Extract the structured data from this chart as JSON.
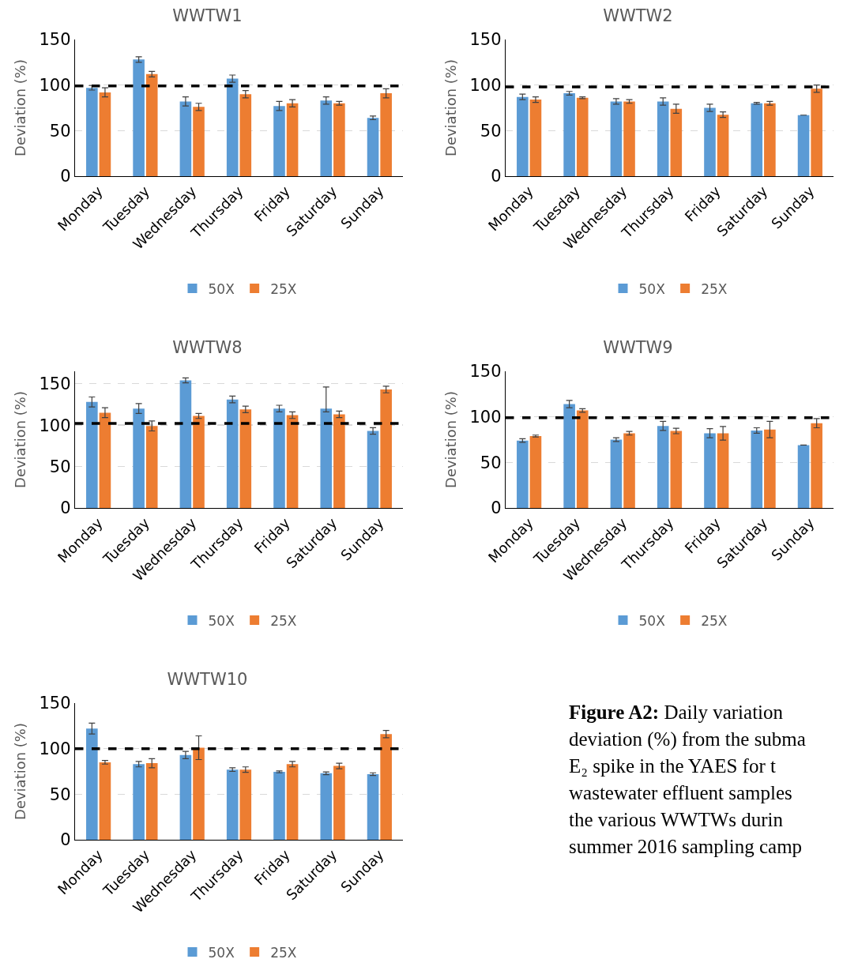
{
  "chart_data": [
    {
      "type": "bar",
      "title": "WWTW1",
      "ylabel": "Deviation (%)",
      "categories": [
        "Monday",
        "Tuesday",
        "Wednesday",
        "Thursday",
        "Friday",
        "Saturday",
        "Sunday"
      ],
      "ylim": [
        0,
        150
      ],
      "yticks": [
        0,
        50,
        100,
        150
      ],
      "grid": "y",
      "legend": "bottom",
      "ref_lines": [
        {
          "axis": "y",
          "value": 99,
          "color": "#000000",
          "line_style": "dashed"
        }
      ],
      "series": [
        {
          "name": "50X",
          "color": "#5b9bd5",
          "values": [
            97,
            128,
            82,
            107,
            77,
            83,
            64
          ],
          "errors": [
            2.5,
            3,
            5,
            4,
            5,
            4,
            2
          ]
        },
        {
          "name": "25X",
          "color": "#ed7d31",
          "values": [
            92,
            112,
            76,
            90,
            80,
            80,
            91
          ],
          "errors": [
            5,
            3,
            4,
            4,
            4,
            2,
            5
          ]
        }
      ]
    },
    {
      "type": "bar",
      "title": "WWTW2",
      "ylabel": "Deviation (%)",
      "categories": [
        "Monday",
        "Tuesday",
        "Wednesday",
        "Thursday",
        "Friday",
        "Saturday",
        "Sunday"
      ],
      "ylim": [
        0,
        150
      ],
      "yticks": [
        0,
        50,
        100,
        150
      ],
      "grid": "y",
      "legend": "bottom",
      "ref_lines": [
        {
          "axis": "y",
          "value": 98,
          "color": "#000000",
          "line_style": "dashed"
        }
      ],
      "series": [
        {
          "name": "50X",
          "color": "#5b9bd5",
          "values": [
            87,
            91,
            82,
            82,
            75,
            80,
            67
          ],
          "errors": [
            3,
            2,
            3,
            4,
            4,
            1,
            null
          ]
        },
        {
          "name": "25X",
          "color": "#ed7d31",
          "values": [
            84,
            86,
            82,
            74,
            67.5,
            80,
            96
          ],
          "errors": [
            3,
            1,
            2,
            5,
            3,
            2,
            4
          ]
        }
      ]
    },
    {
      "type": "bar",
      "title": "WWTW8",
      "ylabel": "Deviation (%)",
      "categories": [
        "Monday",
        "Tuesday",
        "Wednesday",
        "Thursday",
        "Friday",
        "Saturday",
        "Sunday"
      ],
      "ylim": [
        0,
        165
      ],
      "yticks": [
        0,
        50,
        100,
        150
      ],
      "grid": "y",
      "legend": "bottom",
      "ref_lines": [
        {
          "axis": "y",
          "value": 102,
          "color": "#000000",
          "line_style": "dashed"
        }
      ],
      "series": [
        {
          "name": "50X",
          "color": "#5b9bd5",
          "values": [
            128,
            120,
            154,
            131,
            120,
            120,
            93
          ],
          "errors": [
            6,
            6,
            3,
            4,
            4,
            [
              116,
              146
            ],
            4
          ]
        },
        {
          "name": "25X",
          "color": "#ed7d31",
          "values": [
            115,
            99,
            111,
            119,
            112,
            113,
            143
          ],
          "errors": [
            6,
            6,
            3,
            4,
            4,
            4,
            4
          ]
        }
      ]
    },
    {
      "type": "bar",
      "title": "WWTW9",
      "ylabel": "Deviation (%)",
      "categories": [
        "Monday",
        "Tuesday",
        "Wednesday",
        "Thursday",
        "Friday",
        "Saturday",
        "Sunday"
      ],
      "ylim": [
        0,
        150
      ],
      "yticks": [
        0,
        50,
        100,
        150
      ],
      "grid": "y",
      "legend": "bottom",
      "ref_lines": [
        {
          "axis": "y",
          "value": 99,
          "color": "#000000",
          "line_style": "dashed"
        }
      ],
      "series": [
        {
          "name": "50X",
          "color": "#5b9bd5",
          "values": [
            74,
            114,
            75,
            90,
            82,
            85,
            69
          ],
          "errors": [
            2,
            4,
            2,
            5,
            5,
            3,
            null
          ]
        },
        {
          "name": "25X",
          "color": "#ed7d31",
          "values": [
            79,
            107,
            82,
            84.5,
            82,
            86,
            93
          ],
          "errors": [
            1,
            2,
            2,
            3,
            7.5,
            9,
            5
          ]
        }
      ]
    },
    {
      "type": "bar",
      "title": "WWTW10",
      "ylabel": "Deviation (%)",
      "categories": [
        "Monday",
        "Tuesday",
        "Wednesday",
        "Thursday",
        "Friday",
        "Saturday",
        "Sunday"
      ],
      "ylim": [
        0,
        150
      ],
      "yticks": [
        0,
        50,
        100,
        150
      ],
      "grid": "y",
      "legend": "bottom",
      "ref_lines": [
        {
          "axis": "y",
          "value": 100,
          "color": "#000000",
          "line_style": "dashed"
        }
      ],
      "series": [
        {
          "name": "50X",
          "color": "#5b9bd5",
          "values": [
            122,
            83,
            93,
            77,
            74.5,
            73,
            72
          ],
          "errors": [
            6,
            3,
            4,
            2,
            1,
            1.5,
            1.5
          ]
        },
        {
          "name": "25X",
          "color": "#ed7d31",
          "values": [
            85,
            84,
            101,
            77,
            83,
            81,
            116
          ],
          "errors": [
            2,
            5,
            13,
            3,
            3,
            3,
            4
          ]
        }
      ]
    },
    {
      "type": "other",
      "title": "Figure A2:",
      "annotations": [
        "Daily variation",
        "deviation (%) from the subma",
        "E₂ spike in the YAES for t",
        "wastewater effluent samples",
        "the various WWTWs durin",
        "summer 2016 sampling camp"
      ]
    }
  ]
}
